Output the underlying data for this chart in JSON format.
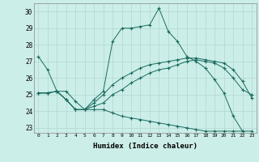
{
  "xlabel": "Humidex (Indice chaleur)",
  "background_color": "#cceee8",
  "grid_color": "#b0d8d0",
  "line_color": "#1a6b60",
  "xlim": [
    -0.5,
    23.5
  ],
  "ylim": [
    22.7,
    30.5
  ],
  "xticks": [
    0,
    1,
    2,
    3,
    4,
    5,
    6,
    7,
    8,
    9,
    10,
    11,
    12,
    13,
    14,
    15,
    16,
    17,
    18,
    19,
    20,
    21,
    22,
    23
  ],
  "yticks": [
    23,
    24,
    25,
    26,
    27,
    28,
    29,
    30
  ],
  "line1_x": [
    0,
    1,
    2,
    3,
    4,
    5,
    6,
    7,
    8,
    9,
    10,
    11,
    12,
    13,
    14,
    15,
    16,
    17,
    18,
    19,
    20,
    21,
    22,
    23
  ],
  "line1_y": [
    27.3,
    26.5,
    25.2,
    25.2,
    24.6,
    24.1,
    24.7,
    25.2,
    28.2,
    29.0,
    29.0,
    29.1,
    29.2,
    30.2,
    28.8,
    28.2,
    27.3,
    27.0,
    26.6,
    25.9,
    25.1,
    23.7,
    22.8,
    null
  ],
  "line2_x": [
    0,
    1,
    2,
    3,
    4,
    5,
    6,
    7,
    8,
    9,
    10,
    11,
    12,
    13,
    14,
    15,
    16,
    17,
    18,
    19,
    20,
    21,
    22,
    23
  ],
  "line2_y": [
    25.1,
    25.1,
    25.2,
    24.7,
    24.1,
    24.1,
    24.5,
    25.0,
    25.6,
    26.0,
    26.3,
    26.6,
    26.8,
    26.9,
    27.0,
    27.1,
    27.2,
    27.2,
    27.1,
    27.0,
    26.9,
    26.5,
    25.8,
    24.8
  ],
  "line3_x": [
    0,
    1,
    2,
    3,
    4,
    5,
    6,
    7,
    8,
    9,
    10,
    11,
    12,
    13,
    14,
    15,
    16,
    17,
    18,
    19,
    20,
    21,
    22,
    23
  ],
  "line3_y": [
    25.1,
    25.1,
    25.2,
    24.7,
    24.1,
    24.1,
    24.3,
    24.5,
    25.0,
    25.3,
    25.7,
    26.0,
    26.3,
    26.5,
    26.6,
    26.8,
    27.0,
    27.1,
    27.0,
    26.9,
    26.6,
    26.0,
    25.3,
    25.0
  ],
  "line4_x": [
    0,
    1,
    2,
    3,
    4,
    5,
    6,
    7,
    8,
    9,
    10,
    11,
    12,
    13,
    14,
    15,
    16,
    17,
    18,
    19,
    20,
    21,
    22,
    23
  ],
  "line4_y": [
    25.1,
    25.1,
    25.2,
    24.7,
    24.1,
    24.1,
    24.1,
    24.1,
    23.9,
    23.7,
    23.6,
    23.5,
    23.4,
    23.3,
    23.2,
    23.1,
    23.0,
    22.9,
    22.8,
    22.8,
    22.8,
    22.8,
    22.8,
    22.8
  ]
}
